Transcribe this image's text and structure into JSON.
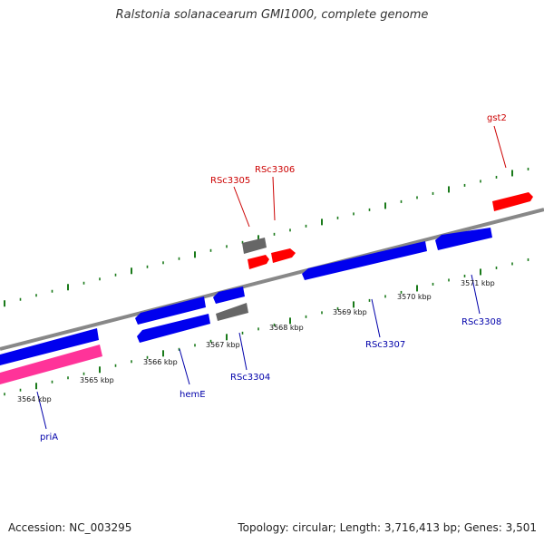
{
  "header": {
    "title": "Ralstonia solanacearum GMI1000, complete genome"
  },
  "footer": {
    "accession": "Accession: NC_003295",
    "summary": "Topology: circular; Length: 3,716,413 bp; Genes: 3,501"
  },
  "colors": {
    "forward_cds": "#ff0000",
    "reverse_cds": "#0000ee",
    "rna_gene": "#ff3399",
    "other_feature": "#666666",
    "backbone": "#888888",
    "ticks": "#1a7a1a",
    "forward_label": "#cc0000",
    "reverse_label": "#0000aa"
  },
  "scale": {
    "unit": "kbp",
    "labels": [
      "3564 kbp",
      "3565 kbp",
      "3566 kbp",
      "3567 kbp",
      "3568 kbp",
      "3569 kbp",
      "3570 kbp",
      "3571 kbp"
    ]
  },
  "genes": [
    {
      "name": "gst2",
      "strand": "forward"
    },
    {
      "name": "RSc3305",
      "strand": "forward"
    },
    {
      "name": "RSc3306",
      "strand": "forward"
    },
    {
      "name": "RSc3307",
      "strand": "reverse"
    },
    {
      "name": "RSc3308",
      "strand": "reverse"
    },
    {
      "name": "RSc3304",
      "strand": "reverse"
    },
    {
      "name": "hemE",
      "strand": "reverse"
    },
    {
      "name": "priA",
      "strand": "reverse"
    }
  ]
}
